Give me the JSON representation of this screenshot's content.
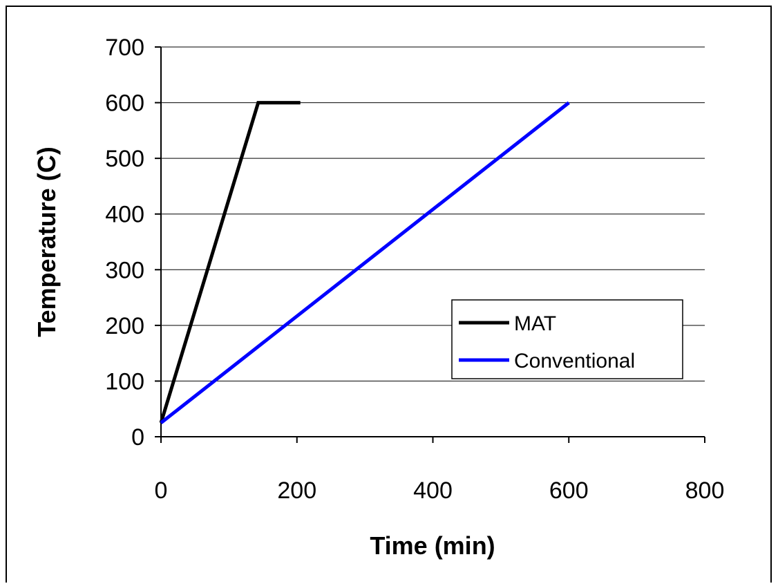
{
  "chart_data": {
    "type": "line",
    "title": "",
    "xlabel": "Time (min)",
    "ylabel": "Temperature (C)",
    "xlim": [
      0,
      800
    ],
    "ylim": [
      0,
      700
    ],
    "x_ticks": [
      "0",
      "200",
      "400",
      "600",
      "800"
    ],
    "y_ticks": [
      "0",
      "100",
      "200",
      "300",
      "400",
      "500",
      "600",
      "700"
    ],
    "grid": "horizontal",
    "legend_position": "lower-right",
    "series": [
      {
        "name": "MAT",
        "color": "#000000",
        "points": [
          [
            0,
            25
          ],
          [
            143,
            600
          ],
          [
            205,
            600
          ]
        ]
      },
      {
        "name": "Conventional",
        "color": "#0000ff",
        "points": [
          [
            0,
            25
          ],
          [
            600,
            600
          ]
        ]
      }
    ]
  }
}
